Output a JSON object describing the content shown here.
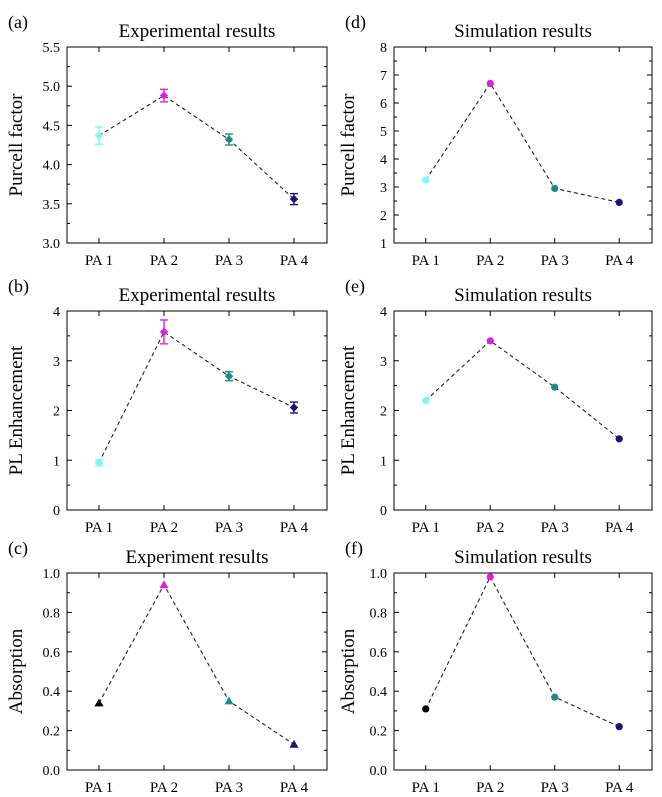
{
  "chart_data": [
    {
      "panel_label": "(a)",
      "title": "Experimental results",
      "type": "line",
      "marker": "diamond",
      "categories": [
        "PA 1",
        "PA 2",
        "PA 3",
        "PA 4"
      ],
      "values": [
        4.37,
        4.88,
        4.32,
        3.56
      ],
      "errors": [
        0.11,
        0.08,
        0.07,
        0.07
      ],
      "colors": [
        "#7ff5f5",
        "#e020e0",
        "#1a8a8a",
        "#14147a"
      ],
      "ylabel": "Purcell factor",
      "ylim": [
        3.0,
        5.5
      ],
      "yticks": [
        "3.0",
        "3.5",
        "4.0",
        "4.5",
        "5.0",
        "5.5"
      ]
    },
    {
      "panel_label": "(d)",
      "title": "Simulation results",
      "type": "line",
      "marker": "circle",
      "categories": [
        "PA 1",
        "PA 2",
        "PA 3",
        "PA 4"
      ],
      "values": [
        3.25,
        6.7,
        2.95,
        2.45
      ],
      "errors": [
        0,
        0,
        0,
        0
      ],
      "colors": [
        "#7ff5f5",
        "#e020e0",
        "#1a8a8a",
        "#14147a"
      ],
      "ylabel": "Purcell factor",
      "ylim": [
        1,
        8
      ],
      "yticks": [
        "1",
        "2",
        "3",
        "4",
        "5",
        "6",
        "7",
        "8"
      ]
    },
    {
      "panel_label": "(b)",
      "title": "Experimental results",
      "type": "line",
      "marker": "diamond",
      "categories": [
        "PA 1",
        "PA 2",
        "PA 3",
        "PA 4"
      ],
      "values": [
        0.95,
        3.58,
        2.69,
        2.06
      ],
      "errors": [
        0.06,
        0.24,
        0.09,
        0.11
      ],
      "colors": [
        "#7ff5f5",
        "#e020e0",
        "#1a8a8a",
        "#14147a"
      ],
      "ylabel": "PL Enhancement",
      "ylim": [
        0,
        4
      ],
      "yticks": [
        "0",
        "1",
        "2",
        "3",
        "4"
      ]
    },
    {
      "panel_label": "(e)",
      "title": "Simulation results",
      "type": "line",
      "marker": "circle",
      "categories": [
        "PA 1",
        "PA 2",
        "PA 3",
        "PA 4"
      ],
      "values": [
        2.2,
        3.4,
        2.47,
        1.43
      ],
      "errors": [
        0,
        0,
        0,
        0
      ],
      "colors": [
        "#7ff5f5",
        "#e020e0",
        "#1a8a8a",
        "#14147a"
      ],
      "ylabel": "PL Enhancement",
      "ylim": [
        0,
        4
      ],
      "yticks": [
        "0",
        "1",
        "2",
        "3",
        "4"
      ]
    },
    {
      "panel_label": "(c)",
      "title": "Experiment results",
      "type": "line",
      "marker": "triangle",
      "categories": [
        "PA 1",
        "PA 2",
        "PA 3",
        "PA 4"
      ],
      "values": [
        0.34,
        0.94,
        0.35,
        0.13
      ],
      "errors": [
        0,
        0,
        0,
        0
      ],
      "colors": [
        "#000000",
        "#e020e0",
        "#1a8a8a",
        "#14147a"
      ],
      "ylabel": "Absorption",
      "ylim": [
        0.0,
        1.0
      ],
      "yticks": [
        "0.0",
        "0.2",
        "0.4",
        "0.6",
        "0.8",
        "1.0"
      ]
    },
    {
      "panel_label": "(f)",
      "title": "Simulation results",
      "type": "line",
      "marker": "circle",
      "categories": [
        "PA 1",
        "PA 2",
        "PA 3",
        "PA 4"
      ],
      "values": [
        0.31,
        0.98,
        0.37,
        0.22
      ],
      "errors": [
        0,
        0,
        0,
        0
      ],
      "colors": [
        "#000000",
        "#e020e0",
        "#1a8a8a",
        "#14147a"
      ],
      "ylabel": "Absorption",
      "ylim": [
        0.0,
        1.0
      ],
      "yticks": [
        "0.0",
        "0.2",
        "0.4",
        "0.6",
        "0.8",
        "1.0"
      ]
    }
  ]
}
